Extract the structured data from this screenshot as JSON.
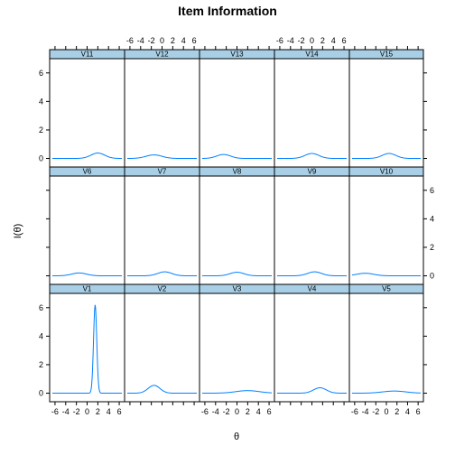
{
  "chart_data": {
    "type": "line",
    "title": "Item Information",
    "xlabel": "θ",
    "ylabel": "I(θ)",
    "xlim": [
      -7,
      7
    ],
    "ylim": [
      -0.6,
      7.0
    ],
    "x_ticks": [
      -6,
      -4,
      -2,
      0,
      2,
      4,
      6
    ],
    "y_ticks": [
      0,
      2,
      4,
      6
    ],
    "line_color": "#0080ff",
    "strip_color": "#a8cfe6",
    "layout": "3 rows x 5 columns, V1 at bottom-left",
    "panels": [
      {
        "name": "V1",
        "peak_theta": 1.5,
        "peak_info": 6.2,
        "spread": 0.3
      },
      {
        "name": "V2",
        "peak_theta": -1.5,
        "peak_info": 0.55,
        "spread": 1.1
      },
      {
        "name": "V3",
        "peak_theta": 2.0,
        "peak_info": 0.18,
        "spread": 2.2
      },
      {
        "name": "V4",
        "peak_theta": 1.5,
        "peak_info": 0.38,
        "spread": 1.2
      },
      {
        "name": "V5",
        "peak_theta": 1.5,
        "peak_info": 0.15,
        "spread": 2.2
      },
      {
        "name": "V6",
        "peak_theta": -1.5,
        "peak_info": 0.2,
        "spread": 1.4
      },
      {
        "name": "V7",
        "peak_theta": 0.5,
        "peak_info": 0.28,
        "spread": 1.3
      },
      {
        "name": "V8",
        "peak_theta": 0.0,
        "peak_info": 0.25,
        "spread": 1.3
      },
      {
        "name": "V9",
        "peak_theta": 0.5,
        "peak_info": 0.28,
        "spread": 1.3
      },
      {
        "name": "V10",
        "peak_theta": -4.0,
        "peak_info": 0.18,
        "spread": 1.6
      },
      {
        "name": "V11",
        "peak_theta": 2.0,
        "peak_info": 0.38,
        "spread": 1.3
      },
      {
        "name": "V12",
        "peak_theta": -1.5,
        "peak_info": 0.25,
        "spread": 1.5
      },
      {
        "name": "V13",
        "peak_theta": -2.5,
        "peak_info": 0.28,
        "spread": 1.3
      },
      {
        "name": "V14",
        "peak_theta": 0.0,
        "peak_info": 0.35,
        "spread": 1.3
      },
      {
        "name": "V15",
        "peak_theta": 0.5,
        "peak_info": 0.35,
        "spread": 1.3
      }
    ]
  }
}
